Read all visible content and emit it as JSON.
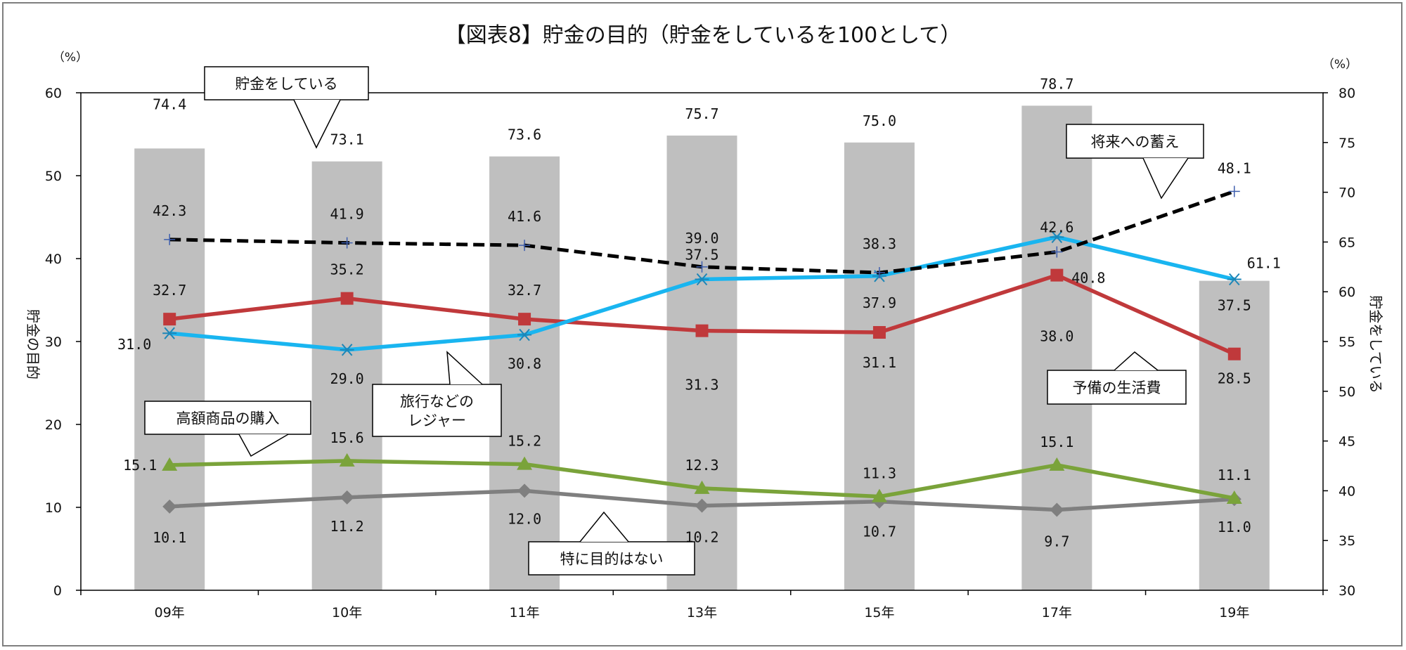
{
  "chart_data": {
    "type": "bar+line",
    "title": "【図表8】貯金の目的（貯金をしているを100として）",
    "left_unit": "（%）",
    "right_unit": "（%）",
    "ylabel": "貯金の目的",
    "y2label": "貯金をしている",
    "ylim": [
      0,
      60
    ],
    "yticks": [
      0,
      10,
      20,
      30,
      40,
      50,
      60
    ],
    "y2lim": [
      30,
      80
    ],
    "y2ticks": [
      30,
      35,
      40,
      45,
      50,
      55,
      60,
      65,
      70,
      75,
      80
    ],
    "categories": [
      "09年",
      "10年",
      "11年",
      "13年",
      "15年",
      "17年",
      "19年"
    ],
    "bar_series": {
      "name": "貯金をしている",
      "axis": "right",
      "values": [
        74.4,
        73.1,
        73.6,
        75.7,
        75.0,
        78.7,
        61.1
      ],
      "labels": [
        "74.4",
        "73.1",
        "73.6",
        "75.7",
        "75.0",
        "78.7",
        "61.1"
      ],
      "color": "#bfbfbf"
    },
    "line_series": [
      {
        "name": "将来への蓄え",
        "values": [
          42.3,
          41.9,
          41.6,
          39.0,
          38.3,
          40.8,
          48.1
        ],
        "labels": [
          "42.3",
          "41.9",
          "41.6",
          "39.0",
          "38.3",
          "40.8",
          "48.1"
        ],
        "color": "#000000",
        "style": "dashed",
        "marker": "plus"
      },
      {
        "name": "旅行などのレジャー",
        "values": [
          31.0,
          29.0,
          30.8,
          37.5,
          37.9,
          42.6,
          37.5
        ],
        "labels": [
          "31.0",
          "29.0",
          "30.8",
          "37.5",
          "37.9",
          "42.6",
          "37.5"
        ],
        "color": "#19b5f0",
        "style": "solid",
        "marker": "asterisk"
      },
      {
        "name": "予備の生活費",
        "values": [
          32.7,
          35.2,
          32.7,
          31.3,
          31.1,
          38.0,
          28.5
        ],
        "labels": [
          "32.7",
          "35.2",
          "32.7",
          "31.3",
          "31.1",
          "38.0",
          "28.5"
        ],
        "color": "#c0393b",
        "style": "solid",
        "marker": "square"
      },
      {
        "name": "高額商品の購入",
        "values": [
          15.1,
          15.6,
          15.2,
          12.3,
          11.3,
          15.1,
          11.1
        ],
        "labels": [
          "15.1",
          "15.6",
          "15.2",
          "12.3",
          "11.3",
          "15.1",
          "11.1"
        ],
        "color": "#7aa33a",
        "style": "solid",
        "marker": "triangle"
      },
      {
        "name": "特に目的はない",
        "values": [
          10.1,
          11.2,
          12.0,
          10.2,
          10.7,
          9.7,
          11.0
        ],
        "labels": [
          "10.1",
          "11.2",
          "12.0",
          "10.2",
          "10.7",
          "9.7",
          "11.0"
        ],
        "color": "#7f7f7f",
        "style": "solid",
        "marker": "diamond"
      }
    ],
    "callouts": [
      {
        "lines": [
          "貯金をしている"
        ]
      },
      {
        "lines": [
          "将来への蓄え"
        ]
      },
      {
        "lines": [
          "旅行などの",
          "レジャー"
        ]
      },
      {
        "lines": [
          "予備の生活費"
        ]
      },
      {
        "lines": [
          "高額商品の購入"
        ]
      },
      {
        "lines": [
          "特に目的はない"
        ]
      }
    ],
    "grid": false,
    "legend": "callouts"
  }
}
